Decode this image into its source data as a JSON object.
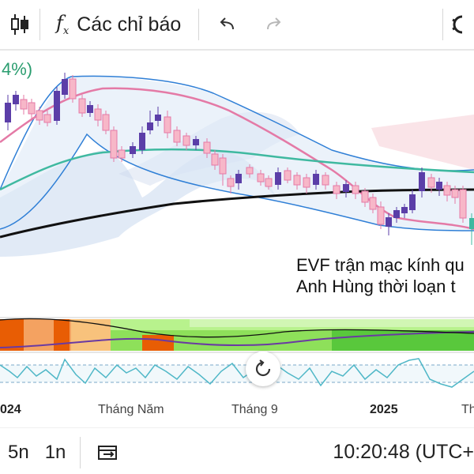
{
  "toolbar": {
    "candle_icon": "candlestick-icon",
    "indicators_label": "Các chỉ báo",
    "undo_icon": "undo-icon",
    "redo_icon": "redo-icon",
    "settings_icon": "gear-icon"
  },
  "legend": {
    "percent_fragment": "4%)"
  },
  "annotation": {
    "line1": "EVF trận mạc kính qu",
    "line2": "Anh Hùng thời loạn t"
  },
  "time_axis": {
    "labels": [
      "024",
      "Tháng Năm",
      "Tháng 9",
      "2025",
      "Th"
    ]
  },
  "bottom": {
    "timeframes": [
      "5n",
      "1n"
    ],
    "compare_icon": "compare-icon",
    "clock": "10:20:48 (UTC+"
  },
  "colors": {
    "up_candle": "#5b3ea8",
    "down_candle": "#f7b7c8",
    "bb_line": "#2f7fd6",
    "ma_pink": "#e47aa6",
    "ma_teal": "#3fb9a0",
    "ma_black": "#111111",
    "cloud": "#c9d9ef",
    "rsi": "#4fb7c7"
  }
}
